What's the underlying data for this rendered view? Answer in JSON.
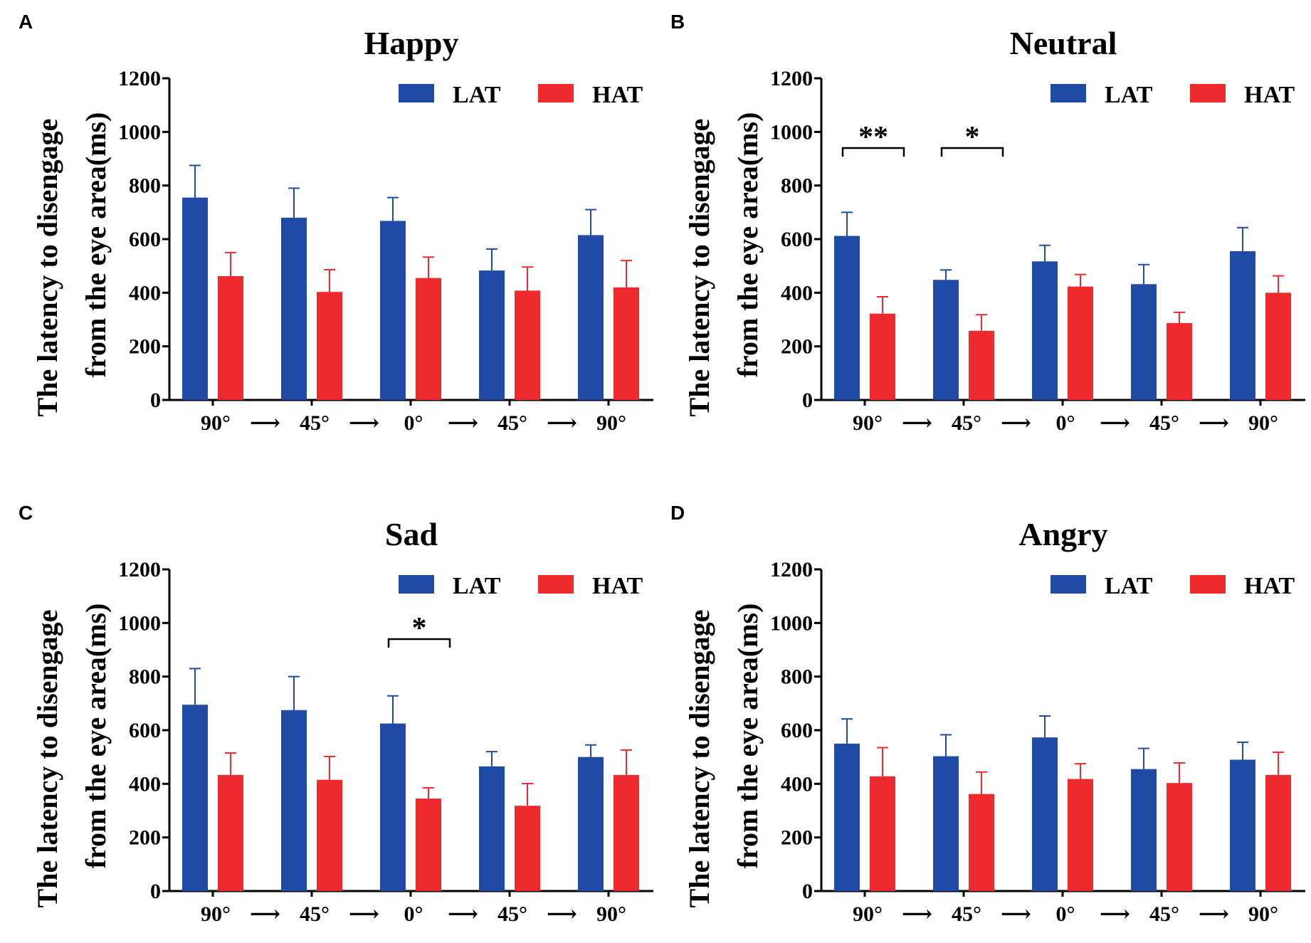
{
  "colors": {
    "LAT": "#1f4aa6",
    "HAT": "#ee2a2e",
    "axis": "#000000"
  },
  "chart_data": [
    {
      "panel": "A",
      "type": "bar",
      "title": "Happy",
      "ylabel_line1": "The latency to disengage",
      "ylabel_line2": "from the eye area(ms)",
      "categories": [
        "90°",
        "45°",
        "0°",
        "45°",
        "90°"
      ],
      "arrow": "⟶",
      "ylim": [
        0,
        1200
      ],
      "yticks": [
        "0",
        "200",
        "400",
        "600",
        "800",
        "1000",
        "1200"
      ],
      "legend": [
        "LAT",
        "HAT"
      ],
      "series": [
        {
          "name": "LAT",
          "values": [
            755,
            680,
            668,
            483,
            615
          ],
          "errors": [
            120,
            110,
            87,
            80,
            95
          ]
        },
        {
          "name": "HAT",
          "values": [
            462,
            403,
            455,
            408,
            420
          ],
          "errors": [
            88,
            83,
            78,
            88,
            100
          ]
        }
      ],
      "significance": []
    },
    {
      "panel": "B",
      "type": "bar",
      "title": "Neutral",
      "ylabel_line1": "The latency to disengage",
      "ylabel_line2": "from the eye area(ms)",
      "categories": [
        "90°",
        "45°",
        "0°",
        "45°",
        "90°"
      ],
      "arrow": "⟶",
      "ylim": [
        0,
        1200
      ],
      "yticks": [
        "0",
        "200",
        "400",
        "600",
        "800",
        "1000",
        "1200"
      ],
      "legend": [
        "LAT",
        "HAT"
      ],
      "series": [
        {
          "name": "LAT",
          "values": [
            612,
            448,
            517,
            432,
            555
          ],
          "errors": [
            88,
            37,
            60,
            73,
            88
          ]
        },
        {
          "name": "HAT",
          "values": [
            322,
            258,
            423,
            287,
            400
          ],
          "errors": [
            63,
            60,
            45,
            40,
            63
          ]
        }
      ],
      "significance": [
        {
          "category_index": 0,
          "label": "**"
        },
        {
          "category_index": 1,
          "label": "*"
        }
      ]
    },
    {
      "panel": "C",
      "type": "bar",
      "title": "Sad",
      "ylabel_line1": "The latency to disengage",
      "ylabel_line2": "from the eye area(ms)",
      "categories": [
        "90°",
        "45°",
        "0°",
        "45°",
        "90°"
      ],
      "arrow": "⟶",
      "ylim": [
        0,
        1200
      ],
      "yticks": [
        "0",
        "200",
        "400",
        "600",
        "800",
        "1000",
        "1200"
      ],
      "legend": [
        "LAT",
        "HAT"
      ],
      "series": [
        {
          "name": "LAT",
          "values": [
            695,
            675,
            625,
            465,
            500
          ],
          "errors": [
            135,
            125,
            103,
            55,
            45
          ]
        },
        {
          "name": "HAT",
          "values": [
            433,
            415,
            345,
            318,
            433
          ],
          "errors": [
            82,
            87,
            40,
            83,
            93
          ]
        }
      ],
      "significance": [
        {
          "category_index": 2,
          "label": "*"
        }
      ]
    },
    {
      "panel": "D",
      "type": "bar",
      "title": "Angry",
      "ylabel_line1": "The latency to disengage",
      "ylabel_line2": "from the eye area(ms)",
      "categories": [
        "90°",
        "45°",
        "0°",
        "45°",
        "90°"
      ],
      "arrow": "⟶",
      "ylim": [
        0,
        1200
      ],
      "yticks": [
        "0",
        "200",
        "400",
        "600",
        "800",
        "1000",
        "1200"
      ],
      "legend": [
        "LAT",
        "HAT"
      ],
      "series": [
        {
          "name": "LAT",
          "values": [
            550,
            503,
            573,
            455,
            490
          ],
          "errors": [
            92,
            80,
            80,
            77,
            65
          ]
        },
        {
          "name": "HAT",
          "values": [
            428,
            362,
            418,
            403,
            433
          ],
          "errors": [
            107,
            82,
            57,
            75,
            85
          ]
        }
      ],
      "significance": []
    }
  ]
}
